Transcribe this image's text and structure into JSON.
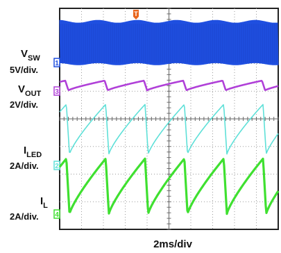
{
  "chart_data": {
    "type": "line",
    "title": "",
    "xlabel": "2ms/div",
    "x_unit": "ms",
    "x_per_div": 2,
    "x_range": [
      0,
      20
    ],
    "grid": true,
    "trigger_marker": "T",
    "channels": [
      {
        "id": "1",
        "name": "V_SW",
        "name_main": "V",
        "name_sub": "SW",
        "scale": "5V/div.",
        "color": "#1f4fe0",
        "signal": "switching",
        "band_divs": [
          -0.75,
          0.75
        ],
        "ripple_period_ms": 3.6
      },
      {
        "id": "3",
        "name": "V_OUT",
        "name_main": "V",
        "name_sub": "OUT",
        "scale": "2V/div.",
        "color": "#b040d8",
        "signal": "sawtooth",
        "period_ms": 3.6,
        "peak_to_peak_divs": 0.35
      },
      {
        "id": "2",
        "name": "I_LED",
        "name_main": "I",
        "name_sub": "LED",
        "scale": "2A/div.",
        "color": "#5ee0d8",
        "signal": "sawtooth",
        "period_ms": 3.6,
        "peak_to_peak_divs": 1.8
      },
      {
        "id": "4",
        "name": "I_L",
        "name_main": "I",
        "name_sub": "L",
        "scale": "2A/div.",
        "color": "#3fe030",
        "signal": "sawtooth",
        "period_ms": 3.6,
        "peak_to_peak_divs": 2.0
      }
    ]
  }
}
